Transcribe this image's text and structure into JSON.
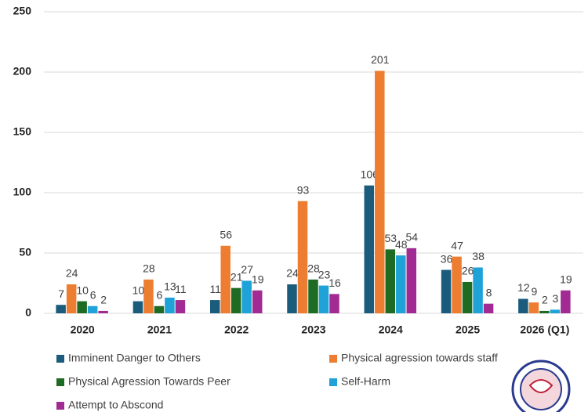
{
  "chart_data": {
    "type": "bar",
    "categories": [
      "2020",
      "2021",
      "2022",
      "2023",
      "2024",
      "2025",
      "2026 (Q1)"
    ],
    "series": [
      {
        "name": "Imminent Danger to Others",
        "color": "#1b5b7c",
        "values": [
          7,
          10,
          11,
          24,
          106,
          36,
          12
        ]
      },
      {
        "name": "Physical agression towards staff",
        "color": "#ed7d31",
        "values": [
          24,
          28,
          56,
          93,
          201,
          47,
          9
        ]
      },
      {
        "name": "Physical Agression Towards Peer",
        "color": "#1e6b24",
        "values": [
          10,
          6,
          21,
          28,
          53,
          26,
          2
        ]
      },
      {
        "name": "Self-Harm",
        "color": "#1ea2d8",
        "values": [
          6,
          13,
          27,
          23,
          48,
          38,
          3
        ]
      },
      {
        "name": "Attempt to Abscond",
        "color": "#a12b92",
        "values": [
          2,
          11,
          19,
          16,
          54,
          8,
          19
        ]
      }
    ],
    "ylim": [
      0,
      250
    ],
    "yticks": [
      0,
      50,
      100,
      150,
      200,
      250
    ],
    "grid": true
  }
}
